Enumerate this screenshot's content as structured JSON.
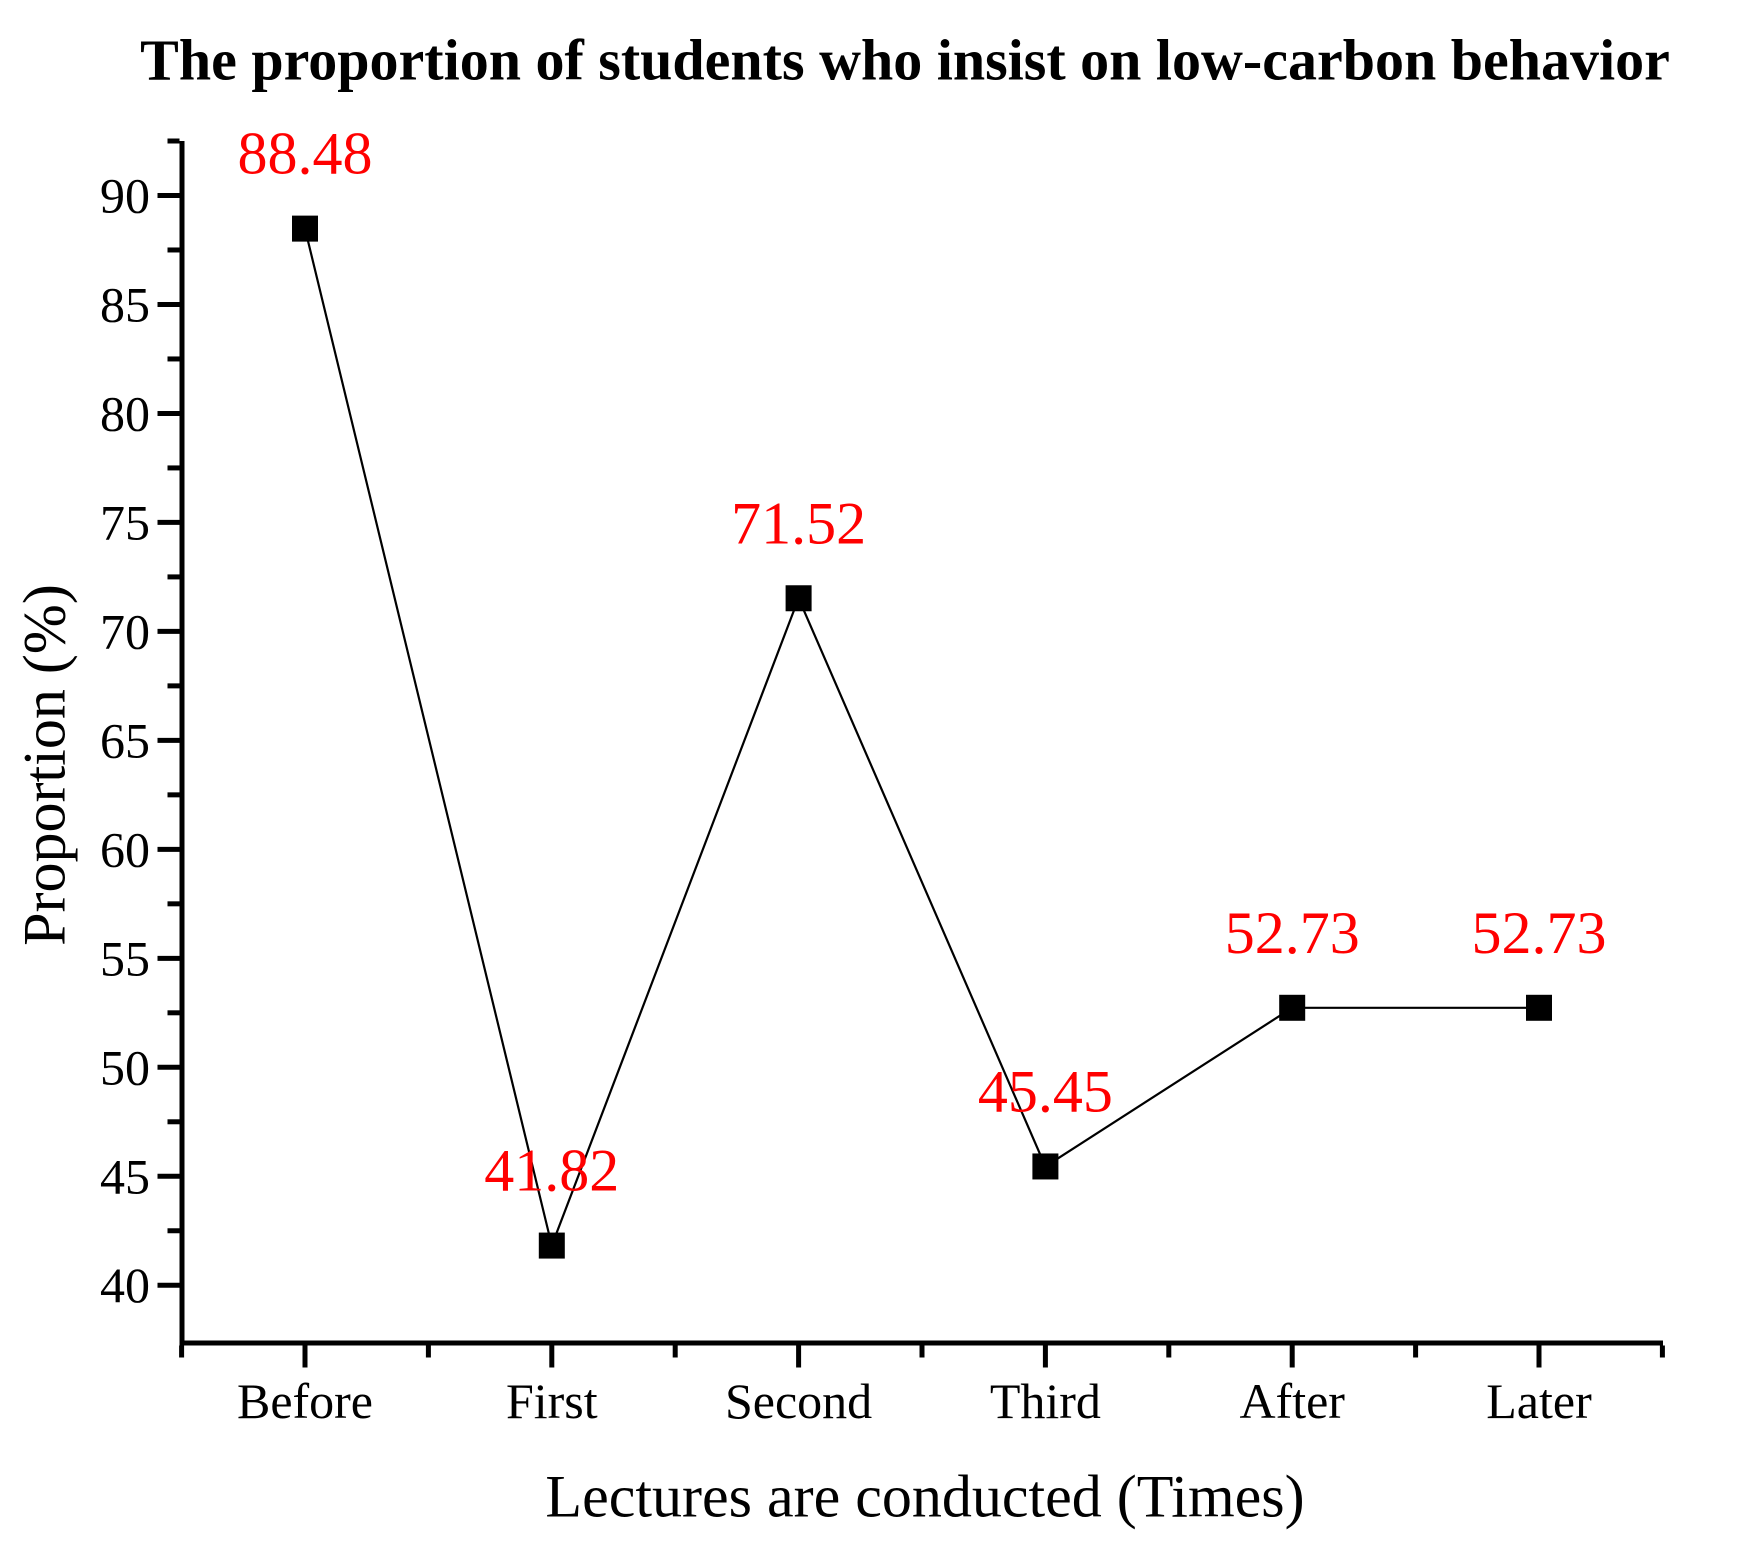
{
  "chart_data": {
    "type": "line",
    "title": "The proportion of students who insist on low-carbon behavior",
    "xlabel": "Lectures are conducted (Times)",
    "ylabel": "Proportion (%)",
    "categories": [
      "Before",
      "First",
      "Second",
      "Third",
      "After",
      "Later"
    ],
    "values": [
      88.48,
      41.82,
      71.52,
      45.45,
      52.73,
      52.73
    ],
    "value_labels": [
      "88.48",
      "41.82",
      "71.52",
      "45.45",
      "52.73",
      "52.73"
    ],
    "ytick_labels": [
      "40",
      "45",
      "50",
      "55",
      "60",
      "65",
      "70",
      "75",
      "80",
      "85",
      "90"
    ],
    "yticks_major": [
      40,
      45,
      50,
      55,
      60,
      65,
      70,
      75,
      80,
      85,
      90
    ],
    "yticks_minor": [
      42.5,
      47.5,
      52.5,
      57.5,
      62.5,
      67.5,
      72.5,
      77.5,
      82.5,
      87.5,
      92.5
    ],
    "ylim": [
      37.35,
      92.5
    ],
    "grid": false,
    "legend": "none",
    "marker": "square",
    "colors": {
      "line": "#000000",
      "marker": "#000000",
      "axis": "#000000",
      "value_label": "#ff0000",
      "title": "#000000"
    }
  }
}
